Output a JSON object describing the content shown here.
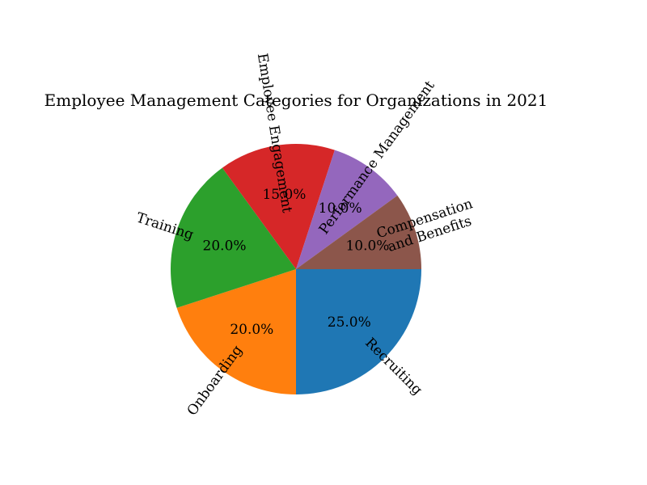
{
  "chart_data": {
    "type": "pie",
    "title": "Employee Management Categories for Organizations in 2021",
    "categories": [
      "Recruiting",
      "Onboarding",
      "Training",
      "Employee Engagement",
      "Performance Management",
      "Compensation and Benefits"
    ],
    "category_lines": [
      [
        "Recruiting"
      ],
      [
        "Onboarding"
      ],
      [
        "Training"
      ],
      [
        "Employee Engagement"
      ],
      [
        "Performance Management"
      ],
      [
        "Compensation",
        "and Benefits"
      ]
    ],
    "values": [
      25,
      20,
      20,
      15,
      10,
      10
    ],
    "percent_labels": [
      "25.0%",
      "20.0%",
      "20.0%",
      "15.0%",
      "10.0%",
      "10.0%"
    ],
    "colors": [
      "#1f77b4",
      "#ff7f0e",
      "#2ca02c",
      "#d62728",
      "#9467bd",
      "#8c564b"
    ],
    "start_angle_deg": 0,
    "direction": "clockwise",
    "legend": false
  }
}
